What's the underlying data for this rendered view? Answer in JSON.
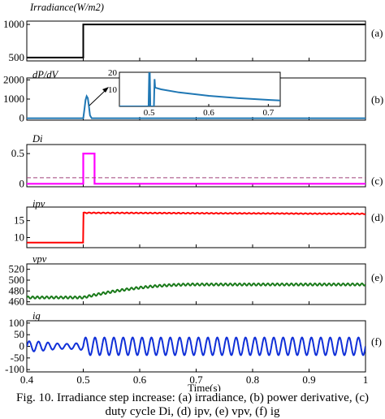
{
  "caption": {
    "line1": "Fig. 10. Irradiance step increase: (a) irradiance, (b) power derivative, (c)",
    "line2": "duty cycle Di, (d) ipv, (e) vpv, (f) ig"
  },
  "colors": {
    "irradiance": "#000000",
    "dpdv": "#1f77b4",
    "di": "#ff00ff",
    "di_threshold": "#a0407a",
    "ipv": "#ff0000",
    "vpv": "#1a7a1a",
    "ig": "#1030d8"
  },
  "chart_data": [
    {
      "id": "a",
      "type": "line",
      "panel_label": "(a)",
      "ylabel": "Irradiance(W/m2)",
      "xlim": [
        0.4,
        1.0
      ],
      "ylim": [
        450,
        1050
      ],
      "yticks": [
        500,
        1000
      ],
      "series": [
        {
          "x": [
            0.4,
            0.5,
            0.5,
            1.0
          ],
          "y": [
            500,
            500,
            1000,
            1000
          ]
        }
      ]
    },
    {
      "id": "b",
      "type": "line",
      "panel_label": "(b)",
      "ylabel": "dP/dV",
      "xlim": [
        0.4,
        1.0
      ],
      "ylim": [
        -100,
        2100
      ],
      "yticks": [
        0,
        1000,
        2000
      ],
      "series": [
        {
          "x": [
            0.4,
            0.5,
            0.502,
            0.504,
            0.506,
            0.508,
            0.51,
            0.512,
            0.515,
            1.0
          ],
          "y": [
            0,
            0,
            450,
            950,
            1150,
            1050,
            650,
            150,
            0,
            0
          ]
        }
      ],
      "inset": {
        "xlim": [
          0.45,
          0.72
        ],
        "ylim": [
          0,
          20
        ],
        "xticks": [
          0.5,
          0.6,
          0.7
        ],
        "yticks": [
          10,
          20
        ],
        "series": [
          {
            "x": [
              0.45,
              0.499,
              0.5,
              0.501,
              0.502,
              0.508,
              0.509,
              0.51,
              0.52,
              0.55,
              0.6,
              0.65,
              0.7,
              0.72
            ],
            "y": [
              0,
              0,
              20,
              20,
              0,
              0,
              16,
              11,
              10,
              8.2,
              6.2,
              4.8,
              3.8,
              3.5
            ]
          }
        ]
      }
    },
    {
      "id": "c",
      "type": "line",
      "panel_label": "(c)",
      "ylabel": "Di",
      "xlim": [
        0.4,
        1.0
      ],
      "ylim": [
        -0.05,
        0.65
      ],
      "yticks": [
        0,
        0.5
      ],
      "series": [
        {
          "x": [
            0.4,
            0.5,
            0.5,
            0.52,
            0.52,
            1.0
          ],
          "y": [
            0,
            0,
            0.5,
            0.5,
            0,
            0
          ]
        },
        {
          "x": [
            0.4,
            1.0
          ],
          "y": [
            0.1,
            0.1
          ],
          "dashed": true
        }
      ]
    },
    {
      "id": "d",
      "type": "line",
      "panel_label": "(d)",
      "ylabel": "ipv",
      "xlim": [
        0.4,
        1.0
      ],
      "ylim": [
        7,
        19
      ],
      "yticks": [
        10,
        15
      ],
      "series": [
        {
          "step_at": 0.5,
          "before": 8.5,
          "after": 17.3,
          "after_end": 17.0,
          "ripple": 0.12
        }
      ]
    },
    {
      "id": "e",
      "type": "line",
      "panel_label": "(e)",
      "ylabel": "vpv",
      "xlim": [
        0.4,
        1.0
      ],
      "ylim": [
        455,
        530
      ],
      "yticks": [
        460,
        480,
        500,
        520
      ],
      "series": [
        {
          "start": 468,
          "rise_start": 0.5,
          "rise_end": 0.7,
          "end": 492,
          "ripple": 2.0
        }
      ]
    },
    {
      "id": "f",
      "type": "line",
      "panel_label": "(f)",
      "ylabel": "ig",
      "xlim": [
        0.4,
        1.0
      ],
      "ylim": [
        -110,
        110
      ],
      "yticks": [
        -100,
        -50,
        0,
        50,
        100
      ],
      "xticks": [
        0.4,
        0.5,
        0.6,
        0.7,
        0.8,
        0.9,
        1.0
      ],
      "xlabel": "Time(s)",
      "series": [
        {
          "freq_hz": 60,
          "amp_before": 22,
          "amp_after": 38
        }
      ]
    }
  ]
}
